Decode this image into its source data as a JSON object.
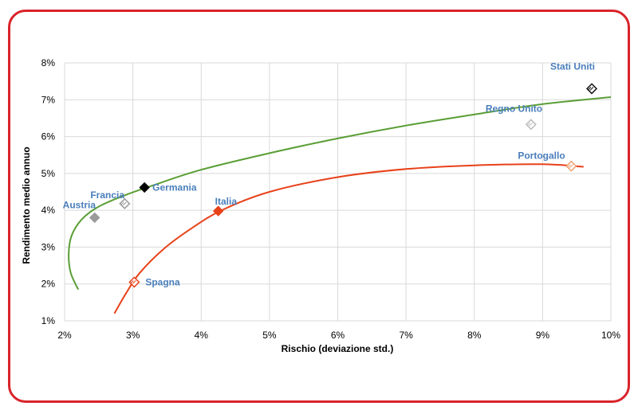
{
  "colors": {
    "frame": "#d9232a",
    "grid": "#d9d9d9",
    "label": "#4a7ebb",
    "green_curve": "#5a9e35",
    "red_curve": "#e8411a"
  },
  "chart_data": {
    "type": "scatter",
    "xlabel": "Rischio (deviazione std.)",
    "ylabel": "Rendimento medio annuo",
    "xlim": [
      2,
      10
    ],
    "ylim": [
      1,
      8
    ],
    "x_ticks": [
      "2%",
      "3%",
      "4%",
      "5%",
      "6%",
      "7%",
      "8%",
      "9%",
      "10%"
    ],
    "y_ticks": [
      "1%",
      "2%",
      "3%",
      "4%",
      "5%",
      "6%",
      "7%",
      "8%"
    ],
    "grid": true,
    "points": [
      {
        "label": "Stati Uniti",
        "x": 9.72,
        "y": 7.3,
        "color": "#111111",
        "style": "hatched"
      },
      {
        "label": "Regno Unito",
        "x": 8.83,
        "y": 6.33,
        "color": "#bdbdbd",
        "style": "hatched"
      },
      {
        "label": "Portogallo",
        "x": 9.42,
        "y": 5.2,
        "color": "#f0a070",
        "style": "hatched"
      },
      {
        "label": "Germania",
        "x": 3.17,
        "y": 4.62,
        "color": "#000000",
        "style": "solid"
      },
      {
        "label": "Francia",
        "x": 2.88,
        "y": 4.18,
        "color": "#9a9a9a",
        "style": "hatched"
      },
      {
        "label": "Austria",
        "x": 2.44,
        "y": 3.8,
        "color": "#9a9a9a",
        "style": "solid"
      },
      {
        "label": "Italia",
        "x": 4.25,
        "y": 3.98,
        "color": "#e8411a",
        "style": "solid"
      },
      {
        "label": "Spagna",
        "x": 3.02,
        "y": 2.05,
        "color": "#e8411a",
        "style": "hatched"
      }
    ],
    "curves": [
      {
        "color": "#5a9e35",
        "points": [
          [
            2.2,
            1.85
          ],
          [
            2.09,
            2.3
          ],
          [
            2.06,
            2.8
          ],
          [
            2.1,
            3.3
          ],
          [
            2.25,
            3.75
          ],
          [
            2.5,
            4.1
          ],
          [
            2.9,
            4.42
          ],
          [
            3.3,
            4.68
          ],
          [
            4,
            5.1
          ],
          [
            5,
            5.55
          ],
          [
            6,
            5.95
          ],
          [
            7,
            6.3
          ],
          [
            8,
            6.6
          ],
          [
            9,
            6.88
          ],
          [
            10,
            7.07
          ]
        ]
      },
      {
        "color": "#e8411a",
        "points": [
          [
            2.73,
            1.2
          ],
          [
            2.9,
            1.75
          ],
          [
            3.1,
            2.3
          ],
          [
            3.45,
            2.95
          ],
          [
            3.85,
            3.5
          ],
          [
            4.3,
            4
          ],
          [
            5,
            4.5
          ],
          [
            6,
            4.9
          ],
          [
            7,
            5.12
          ],
          [
            8,
            5.22
          ],
          [
            9,
            5.25
          ],
          [
            9.6,
            5.18
          ]
        ]
      }
    ]
  }
}
